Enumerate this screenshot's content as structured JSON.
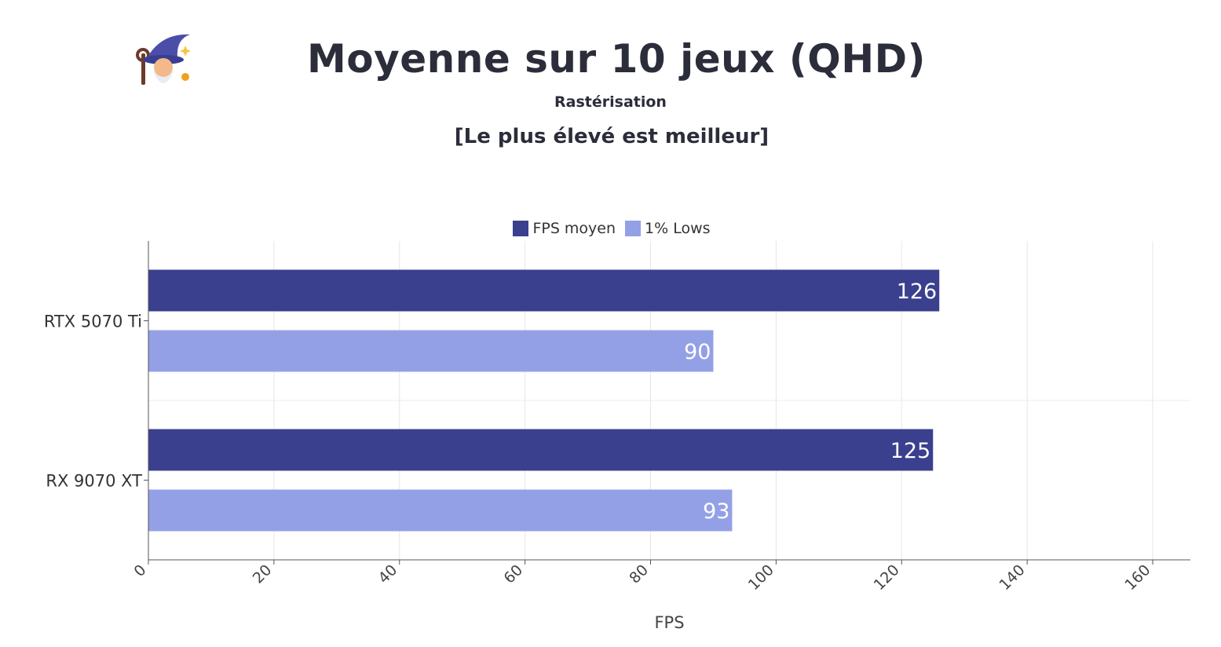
{
  "header": {
    "title": "Moyenne sur 10 jeux (QHD)",
    "subtitle": "Rastérisation",
    "note": "[Le plus élevé est meilleur]",
    "logo_icon": "wizard-icon"
  },
  "chart_data": {
    "type": "bar",
    "orientation": "horizontal",
    "categories": [
      "RTX 5070 Ti",
      "RX 9070 XT"
    ],
    "series": [
      {
        "name": "FPS moyen",
        "color": "#3a3f8e",
        "values": [
          126,
          125
        ]
      },
      {
        "name": "1% Lows",
        "color": "#94a0e6",
        "values": [
          90,
          93
        ]
      }
    ],
    "xlabel": "FPS",
    "ylabel": "",
    "xlim": [
      0,
      166
    ],
    "xticks": [
      0,
      20,
      40,
      60,
      80,
      100,
      120,
      140,
      160
    ],
    "grid": true,
    "legend": "top-center"
  }
}
